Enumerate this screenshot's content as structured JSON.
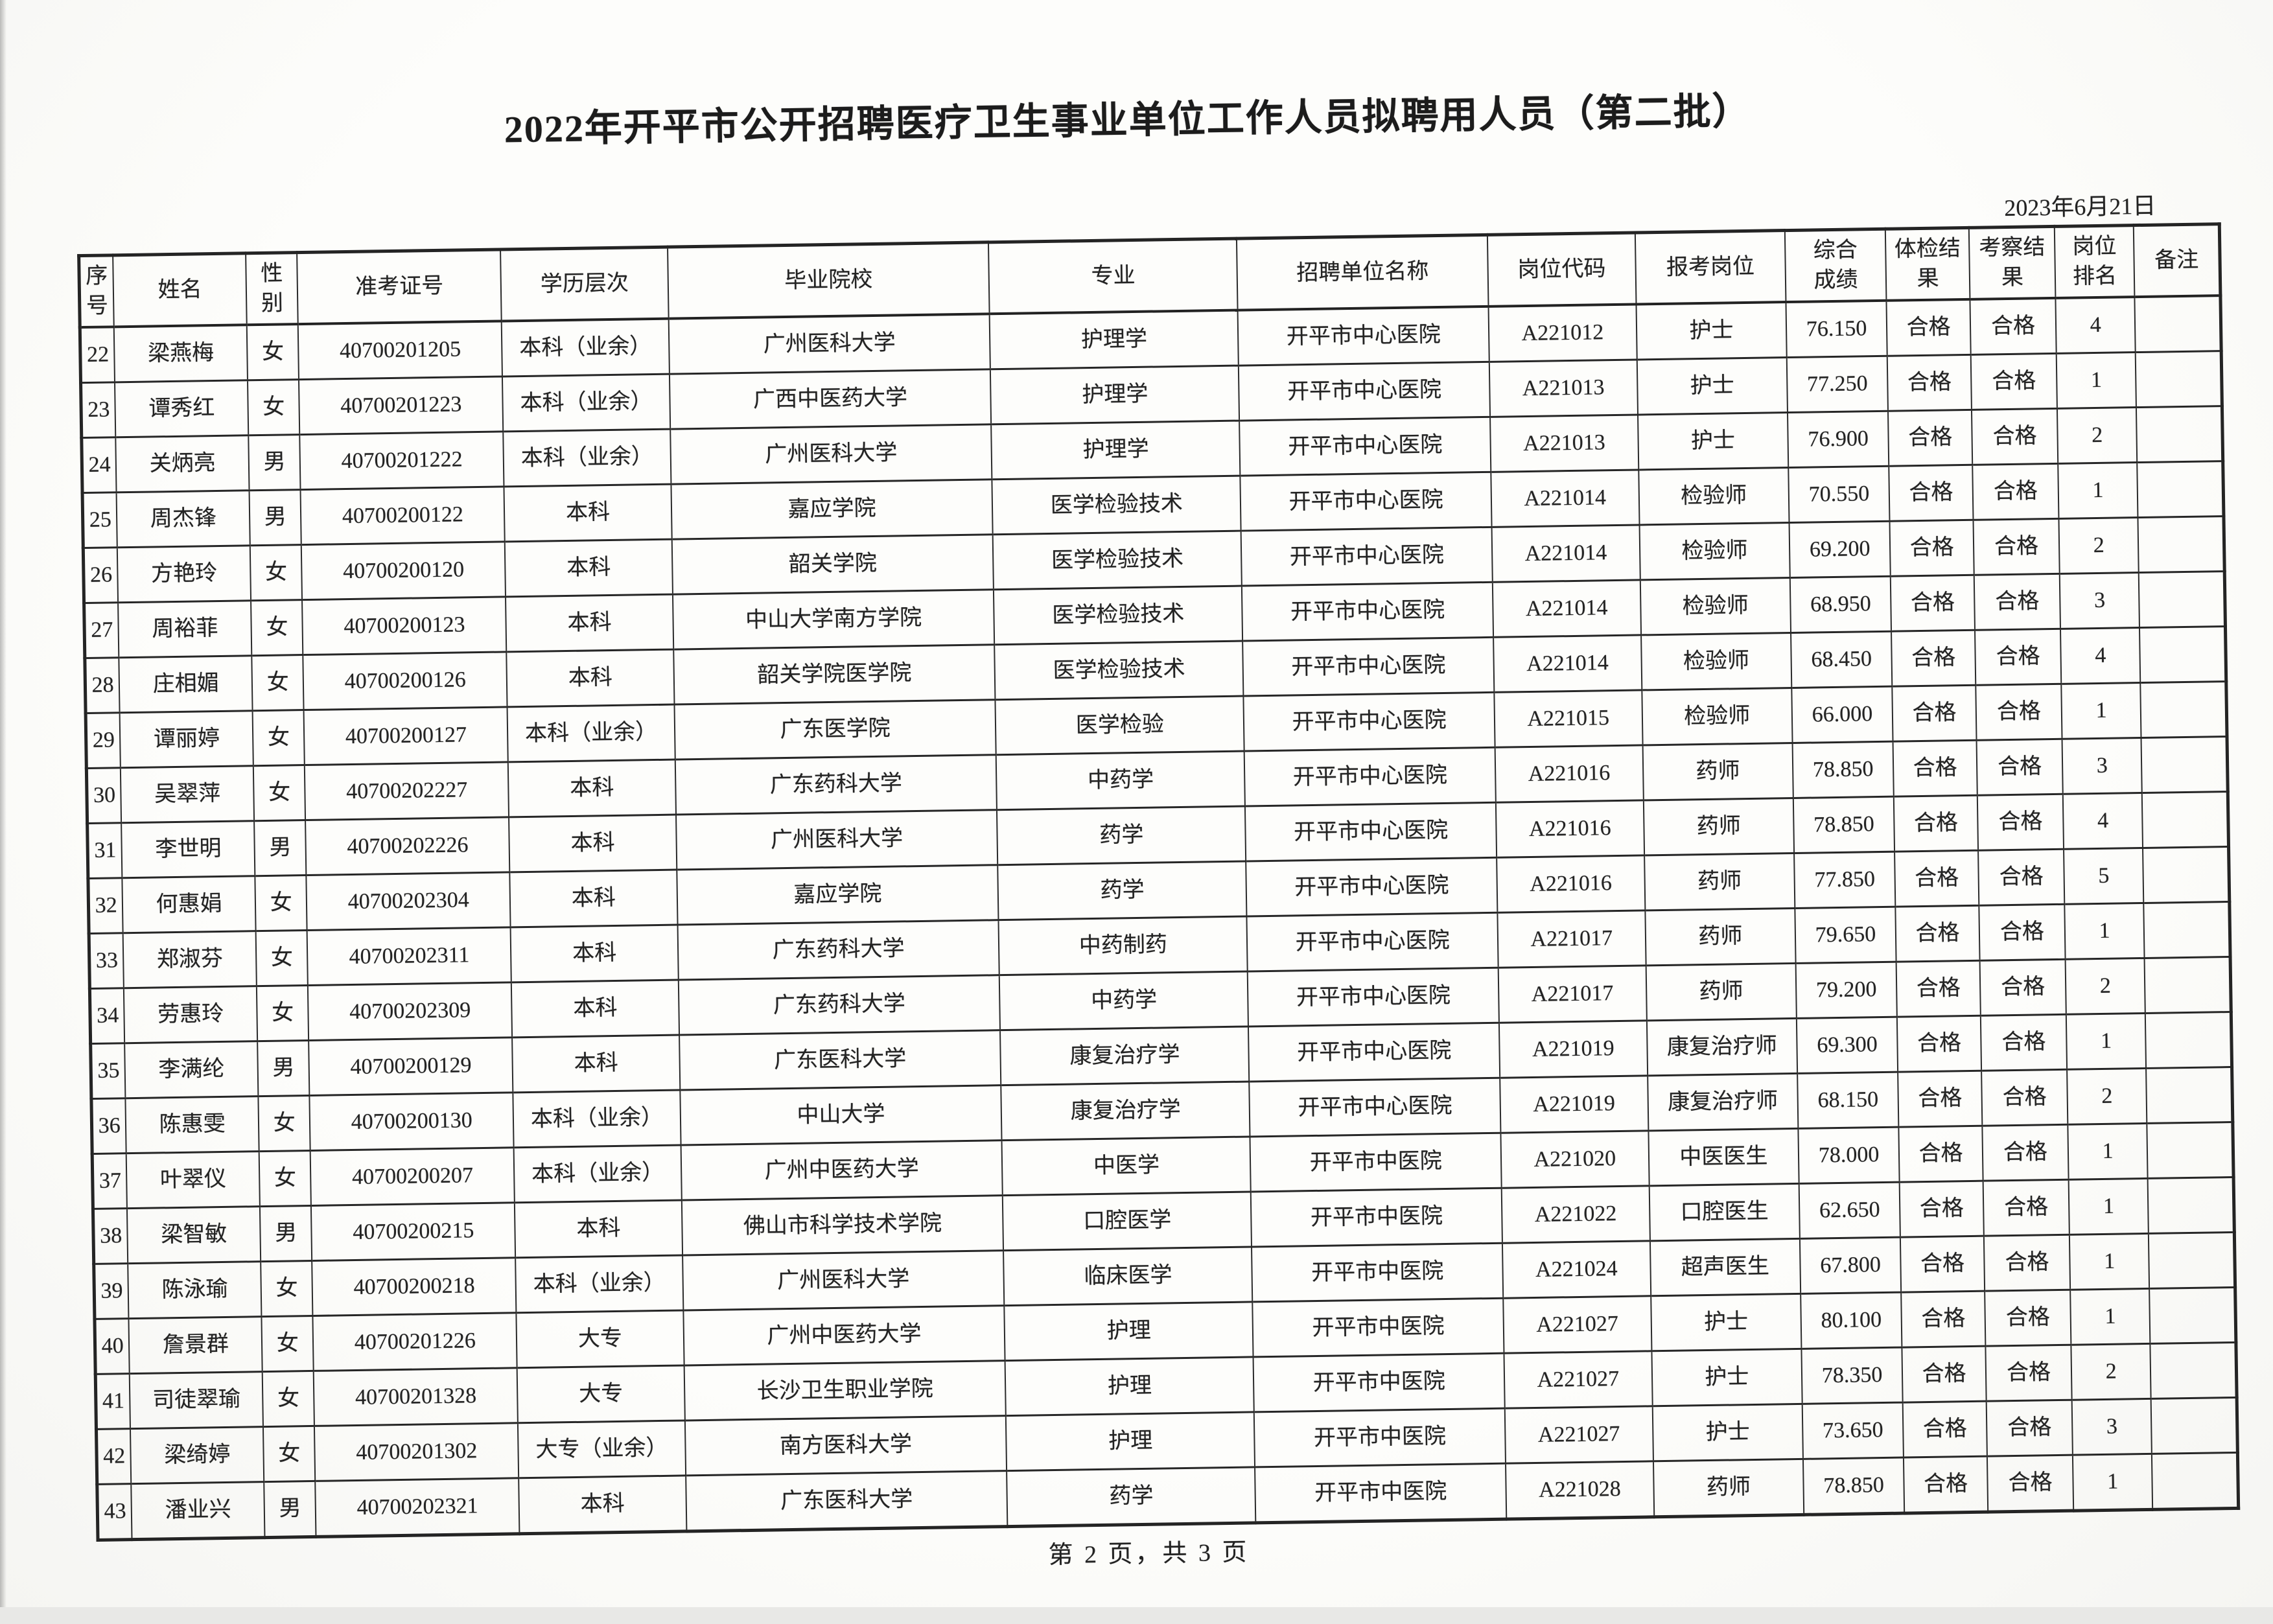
{
  "document": {
    "title": "2022年开平市公开招聘医疗卫生事业单位工作人员拟聘用人员（第二批）",
    "date": "2023年6月21日",
    "footer": "第 2 页，共 3 页"
  },
  "colors": {
    "ink": "#232323",
    "paper": "#fdfdfb",
    "border": "#262626"
  },
  "table": {
    "headers": [
      "序\n号",
      "姓名",
      "性\n别",
      "准考证号",
      "学历层次",
      "毕业院校",
      "专业",
      "招聘单位名称",
      "岗位代码",
      "报考岗位",
      "综合\n成绩",
      "体检结\n果",
      "考察结\n果",
      "岗位\n排名",
      "备注"
    ],
    "col_widths_pct": [
      1.6,
      6.2,
      2.4,
      9.5,
      7.8,
      15.0,
      11.6,
      11.7,
      6.9,
      7.0,
      4.7,
      3.9,
      4.0,
      3.7,
      4.0
    ],
    "rows": [
      [
        "22",
        "梁燕梅",
        "女",
        "40700201205",
        "本科（业余）",
        "广州医科大学",
        "护理学",
        "开平市中心医院",
        "A221012",
        "护士",
        "76.150",
        "合格",
        "合格",
        "4",
        ""
      ],
      [
        "23",
        "谭秀红",
        "女",
        "40700201223",
        "本科（业余）",
        "广西中医药大学",
        "护理学",
        "开平市中心医院",
        "A221013",
        "护士",
        "77.250",
        "合格",
        "合格",
        "1",
        ""
      ],
      [
        "24",
        "关炳亮",
        "男",
        "40700201222",
        "本科（业余）",
        "广州医科大学",
        "护理学",
        "开平市中心医院",
        "A221013",
        "护士",
        "76.900",
        "合格",
        "合格",
        "2",
        ""
      ],
      [
        "25",
        "周杰锋",
        "男",
        "40700200122",
        "本科",
        "嘉应学院",
        "医学检验技术",
        "开平市中心医院",
        "A221014",
        "检验师",
        "70.550",
        "合格",
        "合格",
        "1",
        ""
      ],
      [
        "26",
        "方艳玲",
        "女",
        "40700200120",
        "本科",
        "韶关学院",
        "医学检验技术",
        "开平市中心医院",
        "A221014",
        "检验师",
        "69.200",
        "合格",
        "合格",
        "2",
        ""
      ],
      [
        "27",
        "周裕菲",
        "女",
        "40700200123",
        "本科",
        "中山大学南方学院",
        "医学检验技术",
        "开平市中心医院",
        "A221014",
        "检验师",
        "68.950",
        "合格",
        "合格",
        "3",
        ""
      ],
      [
        "28",
        "庄相媚",
        "女",
        "40700200126",
        "本科",
        "韶关学院医学院",
        "医学检验技术",
        "开平市中心医院",
        "A221014",
        "检验师",
        "68.450",
        "合格",
        "合格",
        "4",
        ""
      ],
      [
        "29",
        "谭丽婷",
        "女",
        "40700200127",
        "本科（业余）",
        "广东医学院",
        "医学检验",
        "开平市中心医院",
        "A221015",
        "检验师",
        "66.000",
        "合格",
        "合格",
        "1",
        ""
      ],
      [
        "30",
        "吴翠萍",
        "女",
        "40700202227",
        "本科",
        "广东药科大学",
        "中药学",
        "开平市中心医院",
        "A221016",
        "药师",
        "78.850",
        "合格",
        "合格",
        "3",
        ""
      ],
      [
        "31",
        "李世明",
        "男",
        "40700202226",
        "本科",
        "广州医科大学",
        "药学",
        "开平市中心医院",
        "A221016",
        "药师",
        "78.850",
        "合格",
        "合格",
        "4",
        ""
      ],
      [
        "32",
        "何惠娟",
        "女",
        "40700202304",
        "本科",
        "嘉应学院",
        "药学",
        "开平市中心医院",
        "A221016",
        "药师",
        "77.850",
        "合格",
        "合格",
        "5",
        ""
      ],
      [
        "33",
        "郑淑芬",
        "女",
        "40700202311",
        "本科",
        "广东药科大学",
        "中药制药",
        "开平市中心医院",
        "A221017",
        "药师",
        "79.650",
        "合格",
        "合格",
        "1",
        ""
      ],
      [
        "34",
        "劳惠玲",
        "女",
        "40700202309",
        "本科",
        "广东药科大学",
        "中药学",
        "开平市中心医院",
        "A221017",
        "药师",
        "79.200",
        "合格",
        "合格",
        "2",
        ""
      ],
      [
        "35",
        "李满纶",
        "男",
        "40700200129",
        "本科",
        "广东医科大学",
        "康复治疗学",
        "开平市中心医院",
        "A221019",
        "康复治疗师",
        "69.300",
        "合格",
        "合格",
        "1",
        ""
      ],
      [
        "36",
        "陈惠雯",
        "女",
        "40700200130",
        "本科（业余）",
        "中山大学",
        "康复治疗学",
        "开平市中心医院",
        "A221019",
        "康复治疗师",
        "68.150",
        "合格",
        "合格",
        "2",
        ""
      ],
      [
        "37",
        "叶翠仪",
        "女",
        "40700200207",
        "本科（业余）",
        "广州中医药大学",
        "中医学",
        "开平市中医院",
        "A221020",
        "中医医生",
        "78.000",
        "合格",
        "合格",
        "1",
        ""
      ],
      [
        "38",
        "梁智敏",
        "男",
        "40700200215",
        "本科",
        "佛山市科学技术学院",
        "口腔医学",
        "开平市中医院",
        "A221022",
        "口腔医生",
        "62.650",
        "合格",
        "合格",
        "1",
        ""
      ],
      [
        "39",
        "陈泳瑜",
        "女",
        "40700200218",
        "本科（业余）",
        "广州医科大学",
        "临床医学",
        "开平市中医院",
        "A221024",
        "超声医生",
        "67.800",
        "合格",
        "合格",
        "1",
        ""
      ],
      [
        "40",
        "詹景群",
        "女",
        "40700201226",
        "大专",
        "广州中医药大学",
        "护理",
        "开平市中医院",
        "A221027",
        "护士",
        "80.100",
        "合格",
        "合格",
        "1",
        ""
      ],
      [
        "41",
        "司徒翠瑜",
        "女",
        "40700201328",
        "大专",
        "长沙卫生职业学院",
        "护理",
        "开平市中医院",
        "A221027",
        "护士",
        "78.350",
        "合格",
        "合格",
        "2",
        ""
      ],
      [
        "42",
        "梁绮婷",
        "女",
        "40700201302",
        "大专（业余）",
        "南方医科大学",
        "护理",
        "开平市中医院",
        "A221027",
        "护士",
        "73.650",
        "合格",
        "合格",
        "3",
        ""
      ],
      [
        "43",
        "潘业兴",
        "男",
        "40700202321",
        "本科",
        "广东医科大学",
        "药学",
        "开平市中医院",
        "A221028",
        "药师",
        "78.850",
        "合格",
        "合格",
        "1",
        ""
      ]
    ]
  }
}
